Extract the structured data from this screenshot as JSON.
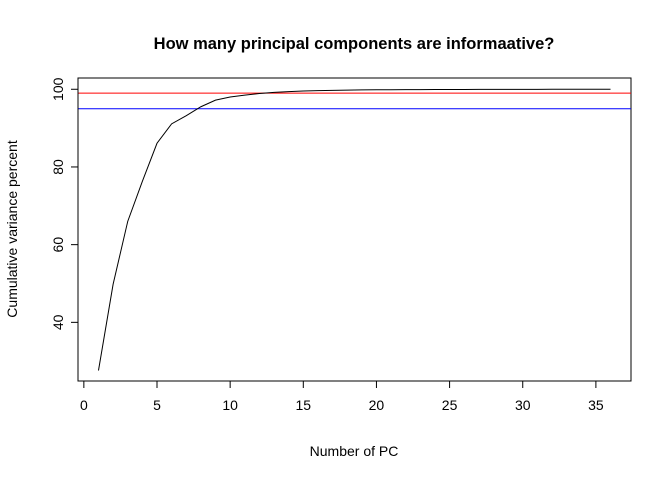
{
  "chart_data": {
    "type": "line",
    "title": "How many principal components are informaative?",
    "xlabel": "Number of PC",
    "ylabel": "Cumulative variance percent",
    "xlim": [
      -0.4,
      37.4
    ],
    "ylim": [
      24.9,
      102.9
    ],
    "xticks": [
      0,
      5,
      10,
      15,
      20,
      25,
      30,
      35
    ],
    "yticks": [
      40,
      60,
      80,
      100
    ],
    "grid": false,
    "series": [
      {
        "color": "#000000",
        "x": [
          1,
          2,
          3,
          4,
          5,
          6,
          7,
          8,
          9,
          10,
          11,
          12,
          13,
          14,
          15,
          16,
          17,
          18,
          19,
          20,
          21,
          22,
          23,
          24,
          25,
          26,
          27,
          28,
          29,
          30,
          31,
          32,
          33,
          34,
          35,
          36
        ],
        "y": [
          27.6,
          49.8,
          66.0,
          76.3,
          86.1,
          91.1,
          93.2,
          95.5,
          97.2,
          98.0,
          98.5,
          98.9,
          99.2,
          99.4,
          99.55,
          99.65,
          99.72,
          99.78,
          99.83,
          99.86,
          99.88,
          99.9,
          99.92,
          99.93,
          99.94,
          99.95,
          99.96,
          99.97,
          99.97,
          99.98,
          99.98,
          99.99,
          99.99,
          99.99,
          100.0,
          100.0
        ]
      }
    ],
    "hlines": [
      {
        "y": 99,
        "color": "#ff0000"
      },
      {
        "y": 95,
        "color": "#0000ff"
      }
    ]
  }
}
